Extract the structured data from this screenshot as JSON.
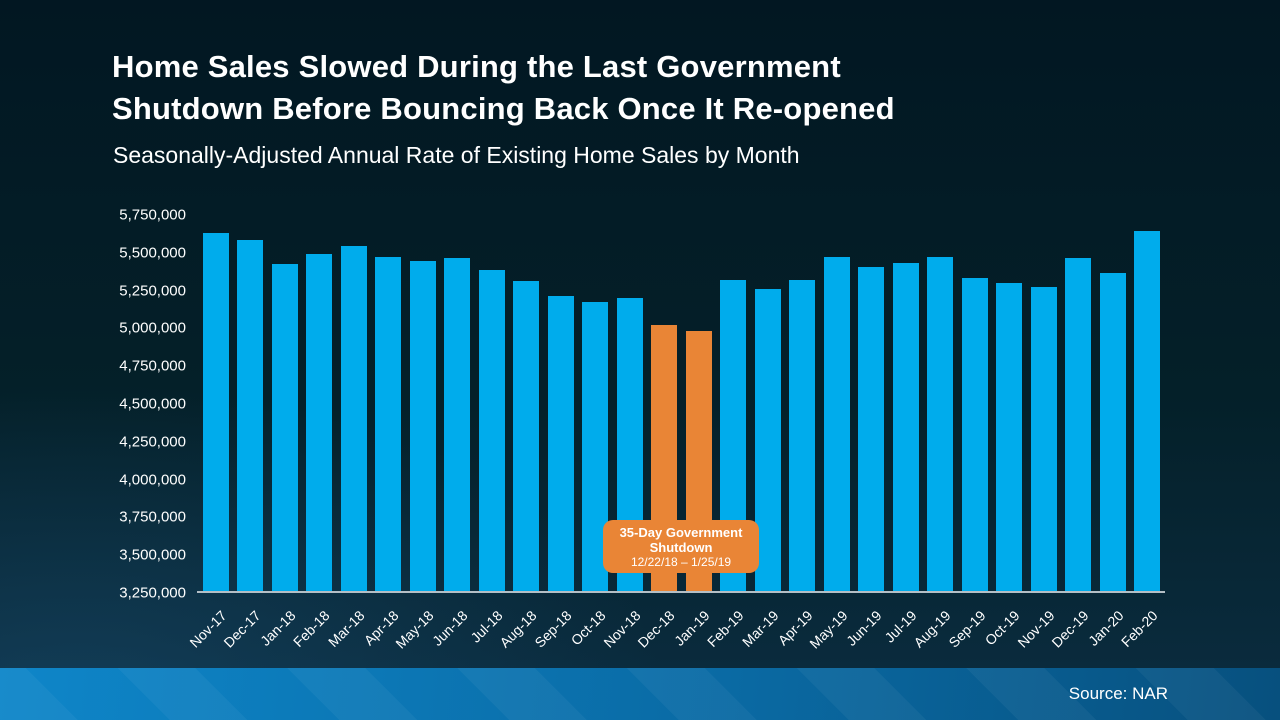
{
  "header": {
    "title_line1": "Home Sales Slowed During the Last Government",
    "title_line2": "Shutdown Before Bouncing Back Once It Re-opened",
    "subtitle": "Seasonally-Adjusted Annual Rate of Existing Home Sales by Month"
  },
  "footer": {
    "source": "Source: NAR"
  },
  "colors": {
    "text": "#FFFFFF",
    "bar_blue": "#00ACEC",
    "bar_orange": "#E98536",
    "axis_line": "#B4BFC6",
    "background_top": "#021722",
    "background_bottom": "#0B2D41",
    "footer_gradient_left": "#0E86C9",
    "footer_gradient_right": "#07507E"
  },
  "chart_data": {
    "type": "bar",
    "title": "Home Sales Slowed During the Last Government Shutdown Before Bouncing Back Once It Re-opened",
    "subtitle": "Seasonally-Adjusted Annual Rate of Existing Home Sales by Month",
    "xlabel": "",
    "ylabel": "",
    "ylim": [
      3250000,
      5750000
    ],
    "ytick_step": 250000,
    "ytick_labels": [
      "5,750,000",
      "5,500,000",
      "5,250,000",
      "5,000,000",
      "4,750,000",
      "4,500,000",
      "4,250,000",
      "4,000,000",
      "3,750,000",
      "3,500,000",
      "3,250,000"
    ],
    "grid": false,
    "legend": false,
    "categories": [
      "Nov-17",
      "Dec-17",
      "Jan-18",
      "Feb-18",
      "Mar-18",
      "Apr-18",
      "May-18",
      "Jun-18",
      "Jul-18",
      "Aug-18",
      "Sep-18",
      "Oct-18",
      "Nov-18",
      "Dec-18",
      "Jan-19",
      "Feb-19",
      "Mar-19",
      "Apr-19",
      "May-19",
      "Jun-19",
      "Jul-19",
      "Aug-19",
      "Sep-19",
      "Oct-19",
      "Nov-19",
      "Dec-19",
      "Jan-20",
      "Feb-20"
    ],
    "values": [
      5620000,
      5570000,
      5410000,
      5480000,
      5530000,
      5460000,
      5430000,
      5450000,
      5370000,
      5300000,
      5200000,
      5160000,
      5190000,
      5010000,
      4970000,
      5310000,
      5250000,
      5310000,
      5460000,
      5390000,
      5420000,
      5460000,
      5320000,
      5290000,
      5260000,
      5450000,
      5350000,
      5630000
    ],
    "highlight_categories": [
      "Dec-18",
      "Jan-19"
    ],
    "annotation": {
      "line1": "35-Day Government",
      "line2": "Shutdown",
      "dates": "12/22/18 – 1/25/19"
    },
    "source": "NAR"
  }
}
